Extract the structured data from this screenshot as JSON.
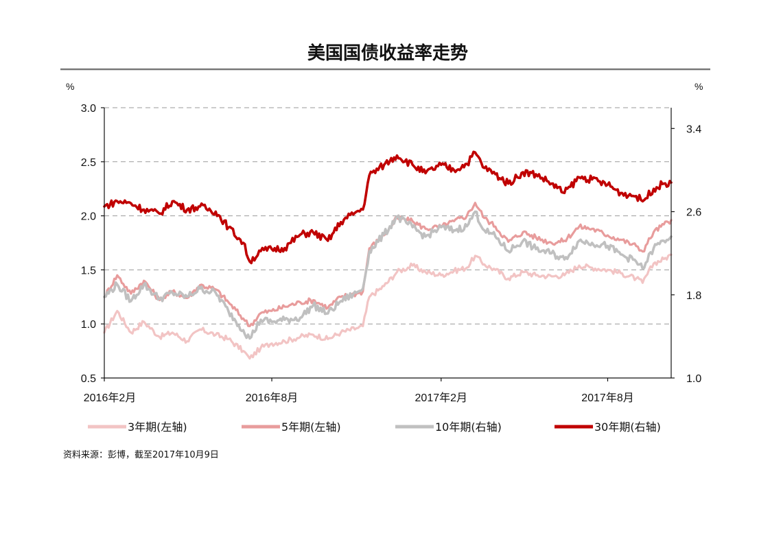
{
  "chart_data": {
    "type": "line",
    "title": "美国国债收益率走势",
    "left_unit": "%",
    "right_unit": "%",
    "left_axis": {
      "ylim": [
        0.5,
        3.0
      ],
      "ticks": [
        "3.0",
        "2.5",
        "2.0",
        "1.5",
        "1.0",
        "0.5"
      ]
    },
    "right_axis": {
      "ylim": [
        1.0,
        3.6
      ],
      "ticks": [
        "3.4",
        "2.6",
        "1.8",
        "1.0"
      ]
    },
    "x_range": [
      "2016-02-01",
      "2017-10-09"
    ],
    "x_ticks": [
      {
        "date": "2016-02-01",
        "label": "2016年2月"
      },
      {
        "date": "2016-08-01",
        "label": "2016年8月"
      },
      {
        "date": "2017-02-01",
        "label": "2017年2月"
      },
      {
        "date": "2017-08-01",
        "label": "2017年8月"
      }
    ],
    "grid": "horizontal dashed",
    "legend_position": "bottom",
    "series": [
      {
        "name": "3年期(左轴)",
        "axis": "left",
        "color": "#f2c4c4",
        "points": [
          [
            "2016-02-01",
            0.92
          ],
          [
            "2016-02-15",
            1.12
          ],
          [
            "2016-03-01",
            0.92
          ],
          [
            "2016-03-15",
            1.02
          ],
          [
            "2016-04-01",
            0.88
          ],
          [
            "2016-04-15",
            0.92
          ],
          [
            "2016-05-01",
            0.84
          ],
          [
            "2016-05-15",
            0.95
          ],
          [
            "2016-06-01",
            0.9
          ],
          [
            "2016-06-15",
            0.86
          ],
          [
            "2016-07-01",
            0.75
          ],
          [
            "2016-07-08",
            0.68
          ],
          [
            "2016-07-20",
            0.78
          ],
          [
            "2016-08-01",
            0.82
          ],
          [
            "2016-08-15",
            0.84
          ],
          [
            "2016-09-01",
            0.88
          ],
          [
            "2016-09-15",
            0.9
          ],
          [
            "2016-10-01",
            0.86
          ],
          [
            "2016-10-15",
            0.92
          ],
          [
            "2016-11-01",
            0.96
          ],
          [
            "2016-11-08",
            0.98
          ],
          [
            "2016-11-15",
            1.25
          ],
          [
            "2016-12-01",
            1.35
          ],
          [
            "2016-12-15",
            1.48
          ],
          [
            "2017-01-01",
            1.54
          ],
          [
            "2017-01-15",
            1.48
          ],
          [
            "2017-02-01",
            1.45
          ],
          [
            "2017-02-15",
            1.49
          ],
          [
            "2017-03-01",
            1.52
          ],
          [
            "2017-03-10",
            1.63
          ],
          [
            "2017-03-20",
            1.55
          ],
          [
            "2017-04-01",
            1.5
          ],
          [
            "2017-04-15",
            1.42
          ],
          [
            "2017-05-01",
            1.48
          ],
          [
            "2017-05-15",
            1.45
          ],
          [
            "2017-06-01",
            1.44
          ],
          [
            "2017-06-15",
            1.45
          ],
          [
            "2017-07-01",
            1.54
          ],
          [
            "2017-07-15",
            1.52
          ],
          [
            "2017-08-01",
            1.5
          ],
          [
            "2017-08-15",
            1.47
          ],
          [
            "2017-09-01",
            1.42
          ],
          [
            "2017-09-08",
            1.38
          ],
          [
            "2017-09-20",
            1.56
          ],
          [
            "2017-10-01",
            1.6
          ],
          [
            "2017-10-09",
            1.64
          ]
        ]
      },
      {
        "name": "5年期(左轴)",
        "axis": "left",
        "color": "#e89c9c",
        "points": [
          [
            "2016-02-01",
            1.25
          ],
          [
            "2016-02-15",
            1.45
          ],
          [
            "2016-03-01",
            1.28
          ],
          [
            "2016-03-15",
            1.4
          ],
          [
            "2016-04-01",
            1.22
          ],
          [
            "2016-04-15",
            1.3
          ],
          [
            "2016-05-01",
            1.24
          ],
          [
            "2016-05-15",
            1.36
          ],
          [
            "2016-06-01",
            1.32
          ],
          [
            "2016-06-15",
            1.2
          ],
          [
            "2016-07-01",
            1.05
          ],
          [
            "2016-07-08",
            0.98
          ],
          [
            "2016-07-20",
            1.1
          ],
          [
            "2016-08-01",
            1.12
          ],
          [
            "2016-08-15",
            1.16
          ],
          [
            "2016-09-01",
            1.2
          ],
          [
            "2016-09-15",
            1.22
          ],
          [
            "2016-10-01",
            1.15
          ],
          [
            "2016-10-15",
            1.25
          ],
          [
            "2016-11-01",
            1.28
          ],
          [
            "2016-11-08",
            1.3
          ],
          [
            "2016-11-15",
            1.7
          ],
          [
            "2016-12-01",
            1.82
          ],
          [
            "2016-12-15",
            1.98
          ],
          [
            "2017-01-01",
            1.95
          ],
          [
            "2017-01-15",
            1.88
          ],
          [
            "2017-02-01",
            1.9
          ],
          [
            "2017-02-15",
            1.95
          ],
          [
            "2017-03-01",
            2.0
          ],
          [
            "2017-03-10",
            2.12
          ],
          [
            "2017-03-20",
            1.98
          ],
          [
            "2017-04-01",
            1.9
          ],
          [
            "2017-04-15",
            1.76
          ],
          [
            "2017-05-01",
            1.85
          ],
          [
            "2017-05-15",
            1.8
          ],
          [
            "2017-06-01",
            1.75
          ],
          [
            "2017-06-15",
            1.77
          ],
          [
            "2017-07-01",
            1.9
          ],
          [
            "2017-07-15",
            1.88
          ],
          [
            "2017-08-01",
            1.82
          ],
          [
            "2017-08-15",
            1.78
          ],
          [
            "2017-09-01",
            1.72
          ],
          [
            "2017-09-08",
            1.67
          ],
          [
            "2017-09-20",
            1.85
          ],
          [
            "2017-10-01",
            1.92
          ],
          [
            "2017-10-09",
            1.96
          ]
        ]
      },
      {
        "name": "10年期(右轴)",
        "axis": "right",
        "color": "#c0c0c0",
        "points": [
          [
            "2016-02-01",
            1.78
          ],
          [
            "2016-02-15",
            1.9
          ],
          [
            "2016-03-01",
            1.74
          ],
          [
            "2016-03-15",
            1.9
          ],
          [
            "2016-04-01",
            1.76
          ],
          [
            "2016-04-15",
            1.82
          ],
          [
            "2016-05-01",
            1.78
          ],
          [
            "2016-05-15",
            1.86
          ],
          [
            "2016-06-01",
            1.82
          ],
          [
            "2016-06-15",
            1.64
          ],
          [
            "2016-07-01",
            1.46
          ],
          [
            "2016-07-08",
            1.38
          ],
          [
            "2016-07-20",
            1.56
          ],
          [
            "2016-08-01",
            1.54
          ],
          [
            "2016-08-15",
            1.56
          ],
          [
            "2016-09-01",
            1.58
          ],
          [
            "2016-09-15",
            1.7
          ],
          [
            "2016-10-01",
            1.62
          ],
          [
            "2016-10-15",
            1.74
          ],
          [
            "2016-11-01",
            1.82
          ],
          [
            "2016-11-08",
            1.86
          ],
          [
            "2016-11-15",
            2.22
          ],
          [
            "2016-12-01",
            2.38
          ],
          [
            "2016-12-15",
            2.55
          ],
          [
            "2017-01-01",
            2.45
          ],
          [
            "2017-01-15",
            2.36
          ],
          [
            "2017-02-01",
            2.45
          ],
          [
            "2017-02-15",
            2.42
          ],
          [
            "2017-03-01",
            2.46
          ],
          [
            "2017-03-10",
            2.6
          ],
          [
            "2017-03-20",
            2.42
          ],
          [
            "2017-04-01",
            2.36
          ],
          [
            "2017-04-15",
            2.22
          ],
          [
            "2017-05-01",
            2.32
          ],
          [
            "2017-05-15",
            2.24
          ],
          [
            "2017-06-01",
            2.2
          ],
          [
            "2017-06-15",
            2.14
          ],
          [
            "2017-07-01",
            2.32
          ],
          [
            "2017-07-15",
            2.3
          ],
          [
            "2017-08-01",
            2.27
          ],
          [
            "2017-08-15",
            2.19
          ],
          [
            "2017-09-01",
            2.12
          ],
          [
            "2017-09-08",
            2.05
          ],
          [
            "2017-09-20",
            2.25
          ],
          [
            "2017-10-01",
            2.32
          ],
          [
            "2017-10-09",
            2.36
          ]
        ]
      },
      {
        "name": "30年期(右轴)",
        "axis": "right",
        "color": "#c00000",
        "points": [
          [
            "2016-02-01",
            2.65
          ],
          [
            "2016-02-15",
            2.7
          ],
          [
            "2016-03-01",
            2.68
          ],
          [
            "2016-03-15",
            2.62
          ],
          [
            "2016-04-01",
            2.58
          ],
          [
            "2016-04-15",
            2.7
          ],
          [
            "2016-05-01",
            2.62
          ],
          [
            "2016-05-15",
            2.65
          ],
          [
            "2016-06-01",
            2.6
          ],
          [
            "2016-06-15",
            2.45
          ],
          [
            "2016-07-01",
            2.3
          ],
          [
            "2016-07-08",
            2.12
          ],
          [
            "2016-07-20",
            2.22
          ],
          [
            "2016-08-01",
            2.24
          ],
          [
            "2016-08-15",
            2.25
          ],
          [
            "2016-09-01",
            2.38
          ],
          [
            "2016-09-15",
            2.4
          ],
          [
            "2016-10-01",
            2.32
          ],
          [
            "2016-10-15",
            2.5
          ],
          [
            "2016-11-01",
            2.6
          ],
          [
            "2016-11-08",
            2.62
          ],
          [
            "2016-11-15",
            2.95
          ],
          [
            "2016-12-01",
            3.05
          ],
          [
            "2016-12-15",
            3.14
          ],
          [
            "2017-01-01",
            3.05
          ],
          [
            "2017-01-15",
            2.97
          ],
          [
            "2017-02-01",
            3.05
          ],
          [
            "2017-02-15",
            3.0
          ],
          [
            "2017-03-01",
            3.06
          ],
          [
            "2017-03-10",
            3.17
          ],
          [
            "2017-03-20",
            3.02
          ],
          [
            "2017-04-01",
            2.96
          ],
          [
            "2017-04-15",
            2.87
          ],
          [
            "2017-05-01",
            2.98
          ],
          [
            "2017-05-15",
            2.96
          ],
          [
            "2017-06-01",
            2.87
          ],
          [
            "2017-06-15",
            2.78
          ],
          [
            "2017-07-01",
            2.93
          ],
          [
            "2017-07-15",
            2.91
          ],
          [
            "2017-08-01",
            2.86
          ],
          [
            "2017-08-15",
            2.78
          ],
          [
            "2017-09-01",
            2.75
          ],
          [
            "2017-09-08",
            2.7
          ],
          [
            "2017-09-20",
            2.82
          ],
          [
            "2017-10-01",
            2.87
          ],
          [
            "2017-10-09",
            2.88
          ]
        ]
      }
    ]
  },
  "footer": {
    "source": "资料来源：彭博，截至2017年10月9日"
  }
}
